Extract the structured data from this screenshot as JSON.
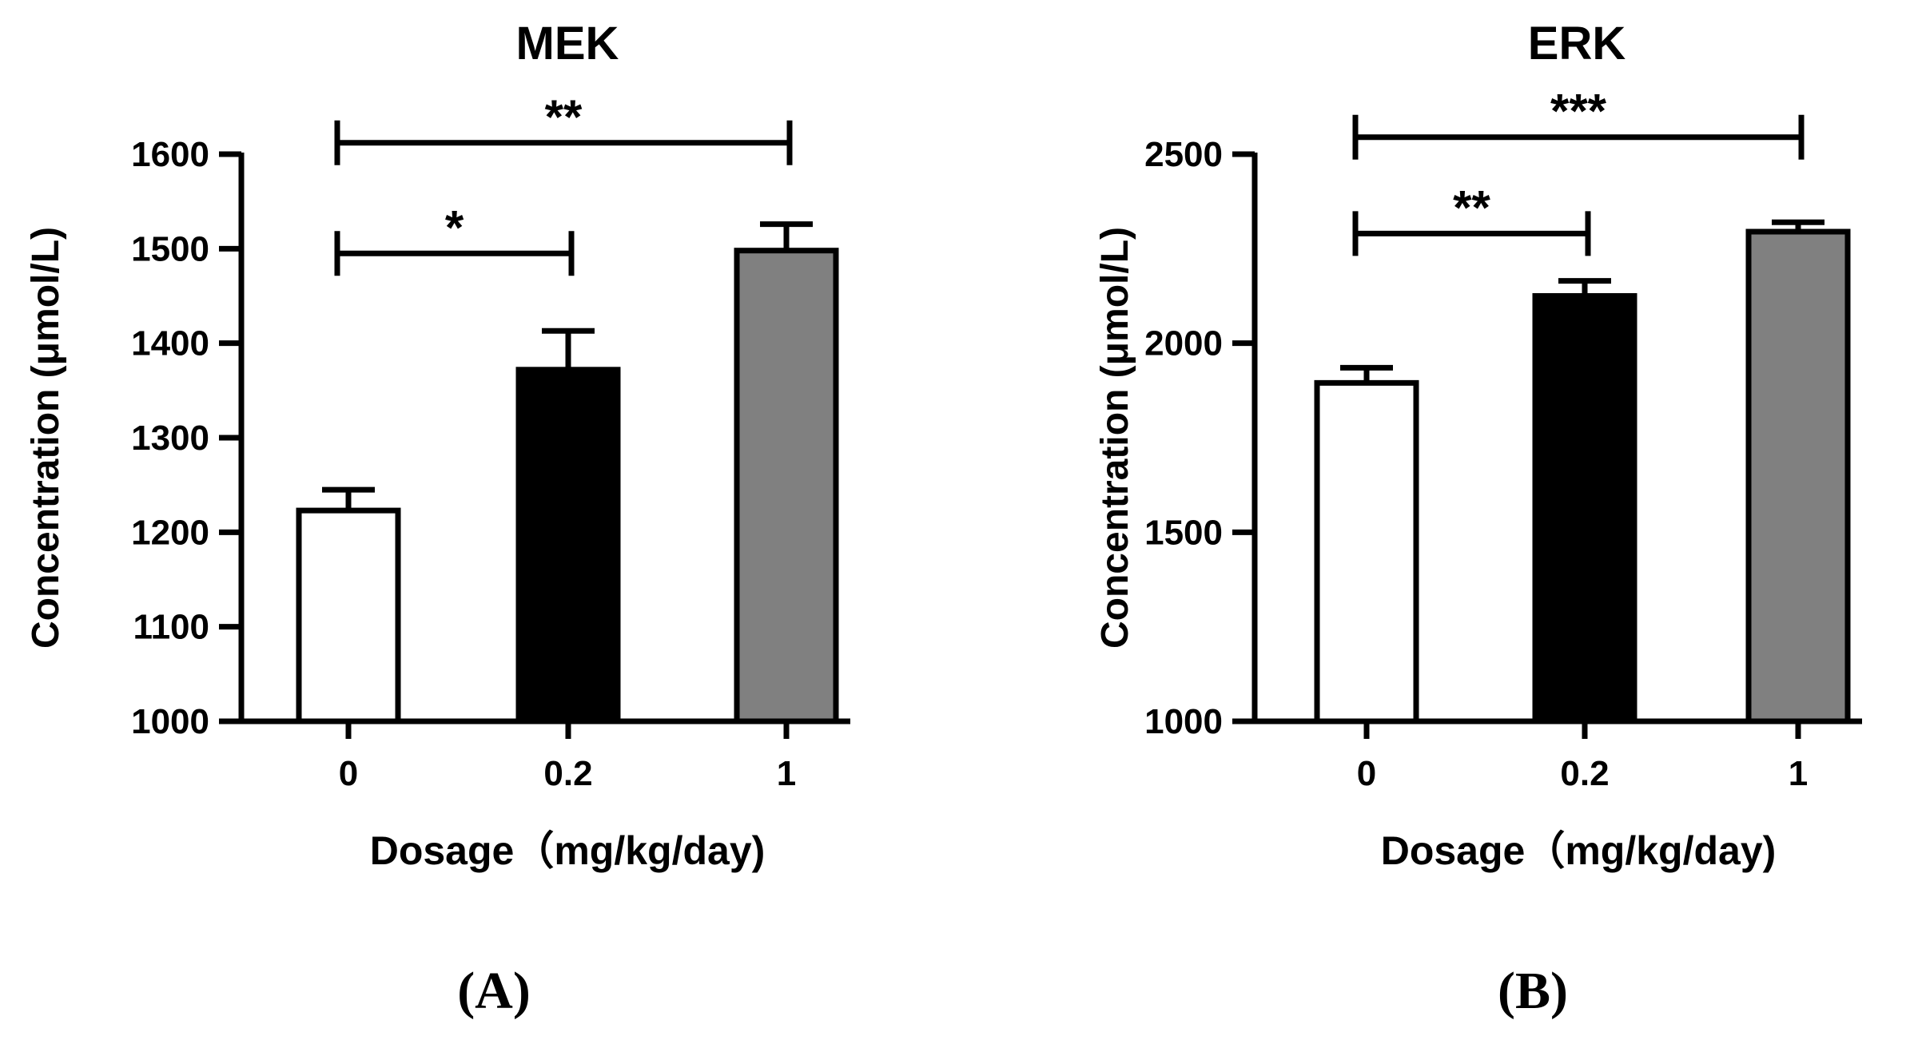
{
  "chart_data": [
    {
      "type": "bar",
      "panel_label": "(A)",
      "title": "MEK",
      "xlabel": "Dosage（mg/kg/day)",
      "ylabel": "Concentration (μmol/L)",
      "categories": [
        "0",
        "0.2",
        "1"
      ],
      "values": [
        1223,
        1372,
        1498
      ],
      "errors": [
        22,
        41,
        28
      ],
      "colors": [
        "#ffffff",
        "#000000",
        "#808080"
      ],
      "ylim": [
        1000,
        1600
      ],
      "yticks": [
        1000,
        1100,
        1200,
        1300,
        1400,
        1500,
        1600
      ],
      "significance": [
        {
          "from": 0,
          "to": 1,
          "label": "*",
          "y": 1495
        },
        {
          "from": 0,
          "to": 2,
          "label": "**",
          "y": 1612
        }
      ]
    },
    {
      "type": "bar",
      "panel_label": "(B)",
      "title": "ERK",
      "xlabel": "Dosage（mg/kg/day)",
      "ylabel": "Concentration (μmol/L)",
      "categories": [
        "0",
        "0.2",
        "1"
      ],
      "values": [
        1895,
        2125,
        2295
      ],
      "errors": [
        40,
        40,
        25
      ],
      "colors": [
        "#ffffff",
        "#000000",
        "#808080"
      ],
      "ylim": [
        1000,
        2500
      ],
      "yticks": [
        1000,
        1500,
        2000,
        2500
      ],
      "significance": [
        {
          "from": 0,
          "to": 1,
          "label": "**",
          "y": 2290
        },
        {
          "from": 0,
          "to": 2,
          "label": "***",
          "y": 2545
        }
      ]
    }
  ]
}
